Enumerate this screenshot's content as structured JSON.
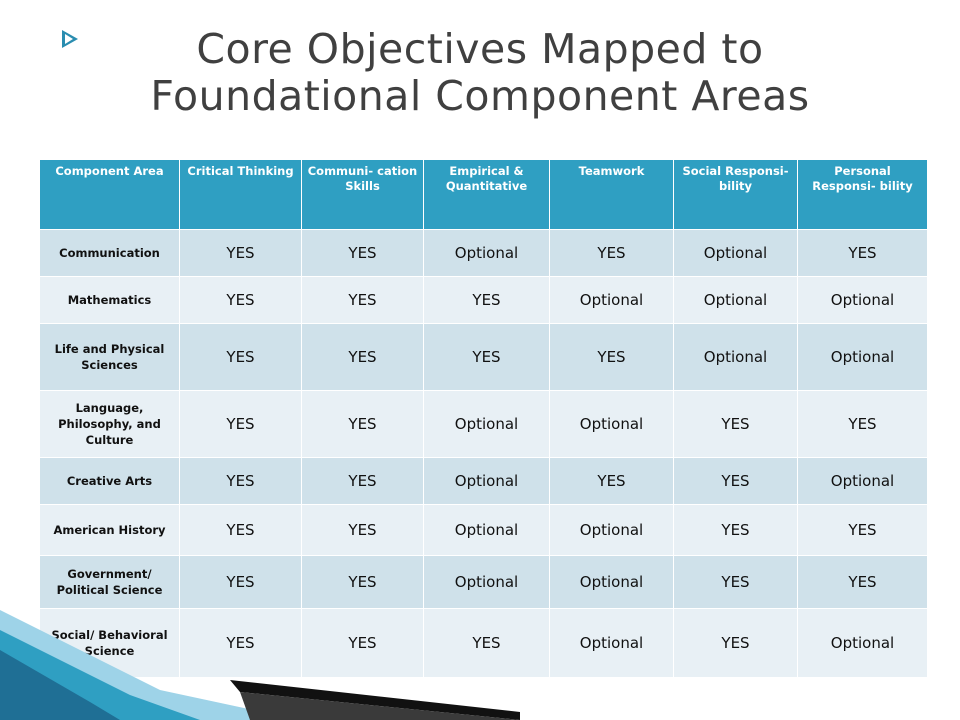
{
  "title": "Core Objectives Mapped to Foundational Component Areas",
  "table": {
    "headers": [
      "Component Area",
      "Critical Thinking",
      "Communi- cation Skills",
      "Empirical & Quantitative",
      "Teamwork",
      "Social Responsi- bility",
      "Personal Responsi- bility"
    ],
    "rows": [
      {
        "area": "Communication",
        "values": [
          "YES",
          "YES",
          "Optional",
          "YES",
          "Optional",
          "YES"
        ]
      },
      {
        "area": "Mathematics",
        "values": [
          "YES",
          "YES",
          "YES",
          "Optional",
          "Optional",
          "Optional"
        ]
      },
      {
        "area": "Life and Physical Sciences",
        "values": [
          "YES",
          "YES",
          "YES",
          "YES",
          "Optional",
          "Optional"
        ]
      },
      {
        "area": "Language, Philosophy, and Culture",
        "values": [
          "YES",
          "YES",
          "Optional",
          "Optional",
          "YES",
          "YES"
        ]
      },
      {
        "area": "Creative Arts",
        "values": [
          "YES",
          "YES",
          "Optional",
          "YES",
          "YES",
          "Optional"
        ]
      },
      {
        "area": "American History",
        "values": [
          "YES",
          "YES",
          "Optional",
          "Optional",
          "YES",
          "YES"
        ]
      },
      {
        "area": "Government/ Political Science",
        "values": [
          "YES",
          "YES",
          "Optional",
          "Optional",
          "YES",
          "YES"
        ]
      },
      {
        "area": "Social/ Behavioral Science",
        "values": [
          "YES",
          "YES",
          "YES",
          "Optional",
          "YES",
          "Optional"
        ]
      }
    ]
  },
  "colors": {
    "header_bg": "#2f9fc2",
    "row_dark": "#cfe1ea",
    "row_light": "#e8f0f5",
    "title_text": "#404040",
    "accent": "#2a8db0"
  },
  "icons": {
    "title_bullet": "arrow-bullet-icon"
  }
}
